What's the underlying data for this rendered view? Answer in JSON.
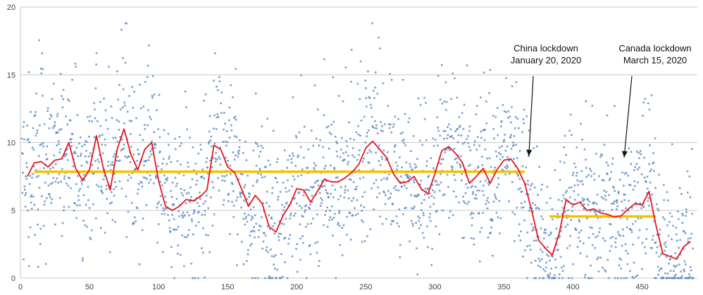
{
  "chart_data": {
    "type": "scatter",
    "title": "",
    "xlabel": "",
    "ylabel": "",
    "xlim": [
      0,
      490
    ],
    "ylim": [
      0,
      20
    ],
    "x_ticks": [
      0,
      50,
      100,
      150,
      200,
      250,
      300,
      350,
      400,
      450
    ],
    "y_ticks": [
      0,
      5,
      10,
      15,
      20
    ],
    "grid": "horizontal",
    "legend": "none",
    "colors": {
      "scatter": "#4f81bd",
      "moving_average": "#e8141b",
      "mean_line": "#f2c200",
      "grid": "#c9c9c9"
    },
    "series": [
      {
        "type": "scatter",
        "note_points": "dense daily readings, approx 12 per x unit",
        "x_range": [
          0,
          490
        ],
        "y_range": [
          0,
          18.8
        ]
      },
      {
        "type": "line",
        "x": [
          5,
          10,
          15,
          20,
          25,
          30,
          35,
          40,
          45,
          50,
          55,
          60,
          65,
          70,
          75,
          80,
          85,
          90,
          95,
          100,
          105,
          110,
          115,
          120,
          125,
          130,
          135,
          140,
          145,
          150,
          155,
          160,
          165,
          170,
          175,
          180,
          185,
          190,
          195,
          200,
          205,
          210,
          215,
          220,
          225,
          230,
          235,
          240,
          245,
          250,
          255,
          260,
          265,
          270,
          275,
          280,
          285,
          290,
          295,
          300,
          305,
          310,
          315,
          320,
          325,
          330,
          335,
          340,
          345,
          350,
          355,
          360,
          365,
          370,
          375,
          380,
          385,
          390,
          395,
          400,
          405,
          410,
          415,
          420,
          425,
          430,
          435,
          440,
          445,
          450,
          455,
          460,
          465,
          470,
          475,
          480,
          485
        ],
        "values": [
          7.5,
          8.5,
          8.6,
          8.2,
          8.7,
          8.8,
          10.0,
          8.1,
          7.2,
          8.0,
          10.5,
          8.1,
          6.5,
          9.5,
          11.0,
          9.1,
          8.0,
          9.5,
          10.0,
          7.2,
          5.3,
          5.0,
          5.3,
          5.8,
          5.7,
          6.0,
          6.5,
          9.8,
          9.5,
          8.2,
          7.8,
          6.6,
          5.3,
          6.1,
          5.5,
          3.8,
          3.4,
          4.6,
          5.4,
          6.6,
          6.5,
          5.6,
          6.4,
          7.3,
          7.1,
          7.1,
          7.4,
          7.8,
          8.4,
          9.6,
          10.1,
          9.5,
          8.9,
          7.7,
          7.0,
          7.1,
          7.5,
          6.6,
          6.2,
          7.7,
          9.4,
          9.7,
          9.2,
          8.5,
          7.0,
          7.5,
          8.1,
          7.0,
          8.0,
          8.7,
          8.8,
          8.1,
          7.0,
          5.0,
          2.8,
          2.2,
          1.7,
          3.3,
          5.8,
          5.4,
          5.6,
          5.0,
          5.1,
          4.8,
          4.7,
          4.5,
          4.6,
          5.1,
          5.5,
          5.4,
          6.4,
          3.9,
          1.8,
          1.6,
          1.4,
          2.3,
          2.7
        ]
      },
      {
        "type": "hline",
        "segments": [
          {
            "x_start": 10,
            "x_end": 365,
            "y": 7.85
          },
          {
            "x_start": 383,
            "x_end": 460,
            "y": 4.55
          }
        ]
      }
    ],
    "annotations": [
      {
        "lines": [
          "China lockdown",
          "January 20, 2020"
        ],
        "arrow_to": {
          "x": 368,
          "y": 9.0
        }
      },
      {
        "lines": [
          "Canada lockdown",
          "March 15, 2020"
        ],
        "arrow_to": {
          "x": 437,
          "y": 8.9
        }
      }
    ]
  }
}
